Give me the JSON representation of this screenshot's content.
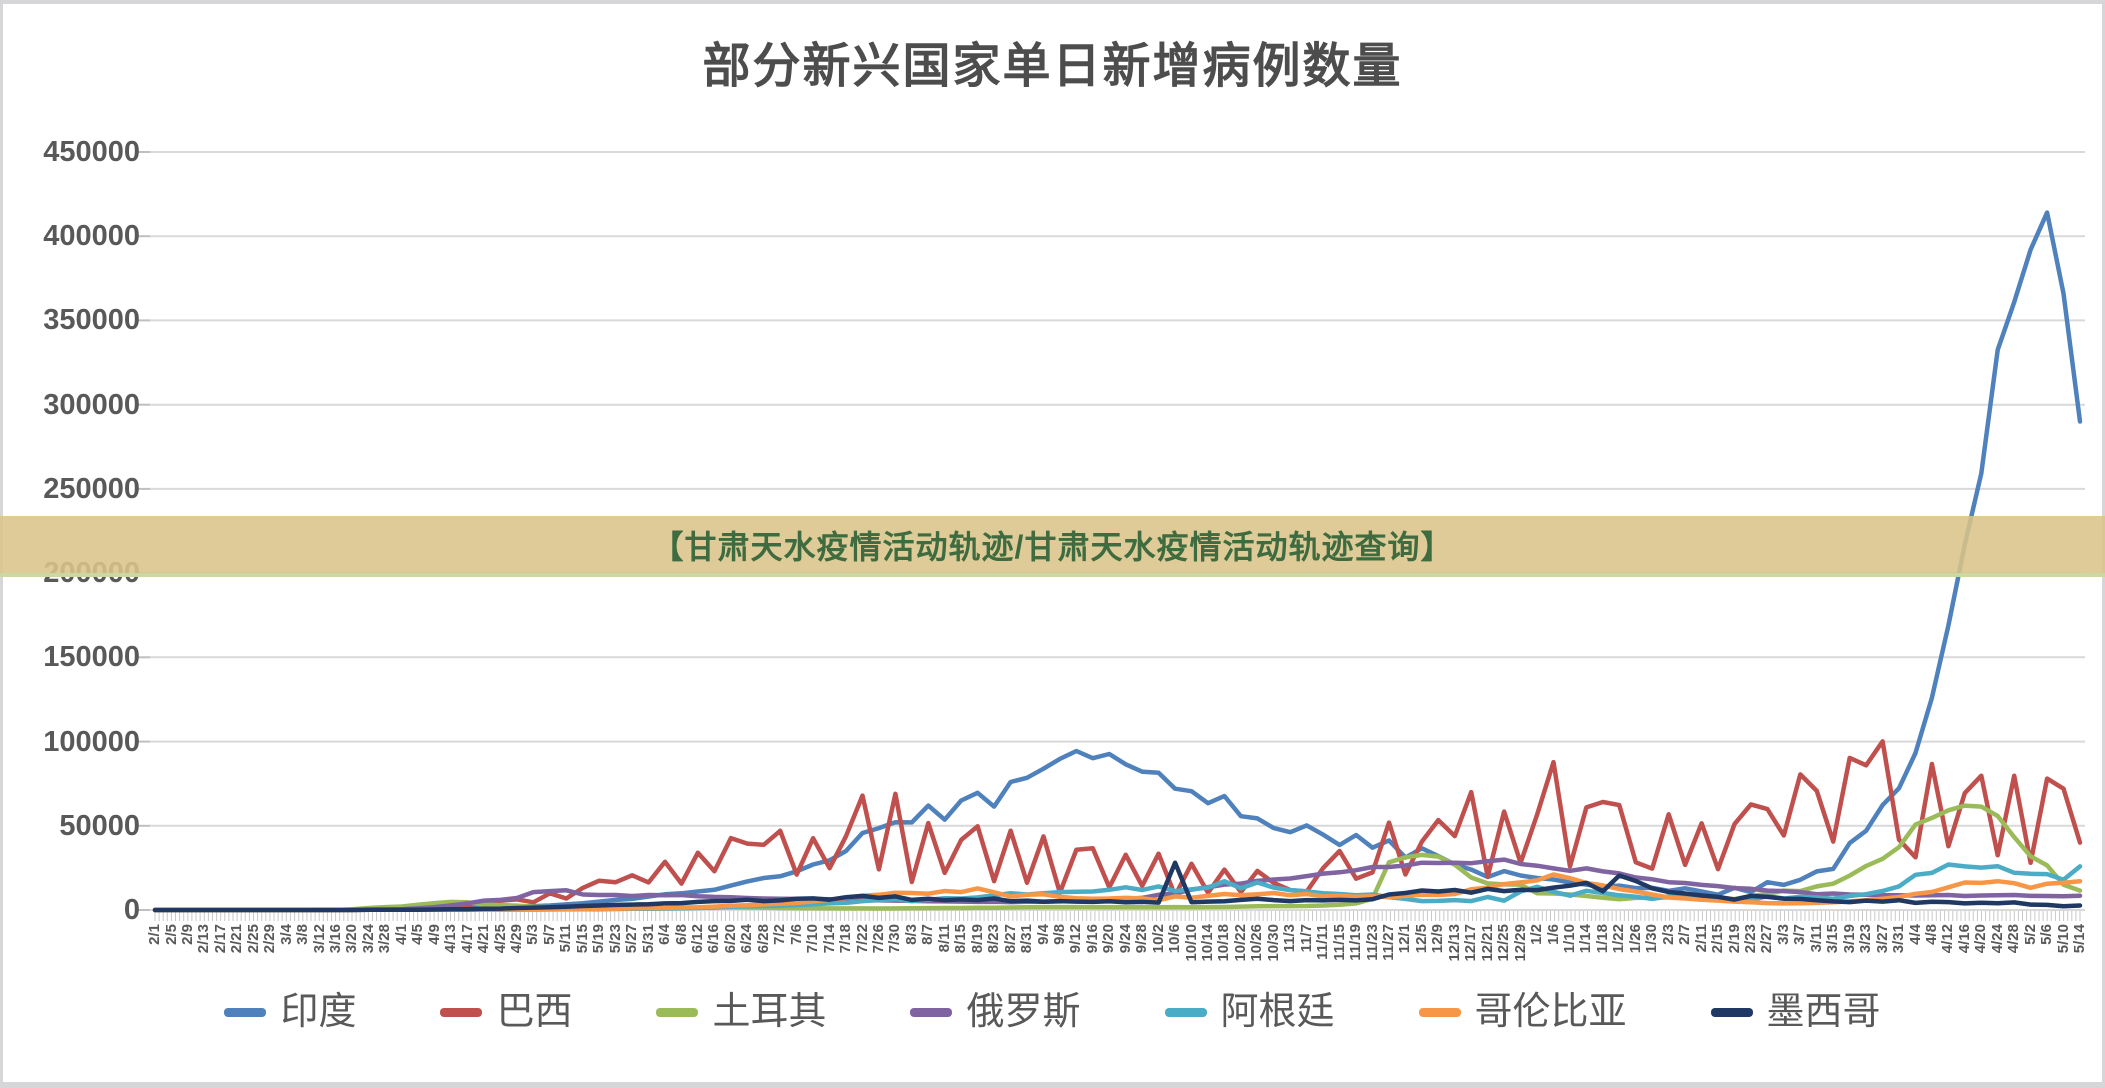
{
  "banner": {
    "text": "【甘肃天水疫情活动轨迹/甘肃天水疫情活动轨迹查询】",
    "bg": "#d9c489",
    "fg": "#3e6b3f"
  },
  "chart_data": {
    "type": "line",
    "title": "部分新兴国家单日新增病例数量",
    "xlabel": "",
    "ylabel": "",
    "ylim": [
      0,
      450000
    ],
    "y_ticks": [
      450000,
      400000,
      350000,
      300000,
      250000,
      200000,
      150000,
      100000,
      50000,
      0
    ],
    "grid": true,
    "legend_position": "bottom",
    "x_note": "daily dates, tick labels every 4 days, 2/1 (2020) through 5/14 (2021)",
    "x_labels": [
      "2/1",
      "2/5",
      "2/9",
      "2/13",
      "2/17",
      "2/21",
      "2/25",
      "2/29",
      "3/4",
      "3/8",
      "3/12",
      "3/16",
      "3/20",
      "3/24",
      "3/28",
      "4/1",
      "4/5",
      "4/9",
      "4/13",
      "4/17",
      "4/21",
      "4/25",
      "4/29",
      "5/3",
      "5/7",
      "5/11",
      "5/15",
      "5/19",
      "5/23",
      "5/27",
      "5/31",
      "6/4",
      "6/8",
      "6/12",
      "6/16",
      "6/20",
      "6/24",
      "6/28",
      "7/2",
      "7/6",
      "7/10",
      "7/14",
      "7/18",
      "7/22",
      "7/26",
      "7/30",
      "8/3",
      "8/7",
      "8/11",
      "8/15",
      "8/19",
      "8/23",
      "8/27",
      "8/31",
      "9/4",
      "9/8",
      "9/12",
      "9/16",
      "9/20",
      "9/24",
      "9/28",
      "10/2",
      "10/6",
      "10/10",
      "10/14",
      "10/18",
      "10/22",
      "10/26",
      "10/30",
      "11/3",
      "11/7",
      "11/11",
      "11/15",
      "11/19",
      "11/23",
      "11/27",
      "12/1",
      "12/5",
      "12/9",
      "12/13",
      "12/17",
      "12/21",
      "12/25",
      "12/29",
      "1/2",
      "1/6",
      "1/10",
      "1/14",
      "1/18",
      "1/22",
      "1/26",
      "1/30",
      "2/3",
      "2/7",
      "2/11",
      "2/15",
      "2/19",
      "2/23",
      "2/27",
      "3/3",
      "3/7",
      "3/11",
      "3/15",
      "3/19",
      "3/23",
      "3/27",
      "3/31",
      "4/4",
      "4/8",
      "4/12",
      "4/16",
      "4/20",
      "4/24",
      "4/28",
      "5/2",
      "5/6",
      "5/10",
      "5/14"
    ],
    "series": [
      {
        "name": "印度",
        "key": "india",
        "color": "#4F81BD",
        "values": [
          0,
          0,
          0,
          0,
          0,
          0,
          0,
          0,
          0,
          0,
          100,
          100,
          200,
          300,
          500,
          600,
          700,
          900,
          1200,
          1400,
          1500,
          1700,
          1900,
          2300,
          2700,
          3300,
          4000,
          5000,
          6000,
          6600,
          8000,
          9300,
          9900,
          11000,
          12000,
          14500,
          17000,
          19000,
          20000,
          23000,
          27000,
          29500,
          35000,
          45700,
          48600,
          52100,
          52000,
          62000,
          53600,
          65000,
          69600,
          61400,
          76000,
          78500,
          83900,
          89700,
          94400,
          90100,
          92600,
          86500,
          82100,
          81500,
          72000,
          70500,
          63400,
          67700,
          55700,
          54400,
          48600,
          46200,
          50200,
          44700,
          38600,
          44500,
          37000,
          41300,
          31100,
          36600,
          32000,
          27100,
          24000,
          19600,
          23100,
          20500,
          19000,
          18100,
          16300,
          15100,
          13800,
          14500,
          13000,
          13100,
          11400,
          12900,
          11000,
          9100,
          13200,
          10600,
          16500,
          14900,
          17900,
          22900,
          24400,
          39700,
          47000,
          62300,
          72300,
          93200,
          126000,
          168900,
          217000,
          259200,
          332500,
          360900,
          392000,
          414000,
          366000,
          290000
        ]
      },
      {
        "name": "巴西",
        "key": "brazil",
        "color": "#C0504D",
        "values": [
          0,
          0,
          0,
          0,
          0,
          0,
          0,
          0,
          0,
          0,
          0,
          100,
          200,
          300,
          500,
          1100,
          1900,
          1800,
          3300,
          2900,
          4600,
          5500,
          6300,
          4600,
          9900,
          6800,
          13100,
          17400,
          16500,
          20600,
          16400,
          28600,
          15700,
          34000,
          23000,
          42700,
          39400,
          38700,
          47000,
          21000,
          42600,
          24800,
          43800,
          67900,
          24100,
          69000,
          16600,
          51600,
          22000,
          41600,
          49700,
          17100,
          47100,
          16200,
          43700,
          10300,
          35800,
          36600,
          13400,
          32800,
          14300,
          33400,
          8500,
          27400,
          10200,
          24000,
          10600,
          23200,
          16000,
          11800,
          10900,
          25000,
          35000,
          18600,
          22300,
          51900,
          21100,
          40600,
          53400,
          43900,
          70000,
          19800,
          58400,
          28000,
          56600,
          87800,
          25800,
          60900,
          64100,
          62300,
          28300,
          24600,
          56800,
          26800,
          51500,
          24300,
          51000,
          62700,
          59900,
          44200,
          80500,
          70700,
          40600,
          90300,
          85900,
          100100,
          41800,
          31300,
          86700,
          37900,
          69400,
          79700,
          32500,
          79700,
          28000,
          78000,
          72000,
          40000
        ]
      },
      {
        "name": "土耳其",
        "key": "turkey",
        "color": "#9BBB59",
        "values": [
          0,
          0,
          0,
          0,
          0,
          0,
          0,
          0,
          0,
          0,
          0,
          0,
          400,
          1200,
          1700,
          2100,
          3100,
          4100,
          4800,
          4600,
          3100,
          2900,
          2600,
          1900,
          1700,
          1500,
          1000,
          1200,
          1100,
          1000,
          800,
          900,
          1000,
          1500,
          1400,
          1600,
          1500,
          1400,
          1200,
          1100,
          1000,
          950,
          930,
          960,
          920,
          970,
          1000,
          1100,
          1200,
          1200,
          1300,
          1300,
          1500,
          1600,
          1700,
          1700,
          1700,
          1700,
          1600,
          1700,
          1600,
          1600,
          1700,
          1600,
          1700,
          1800,
          2000,
          2200,
          2300,
          2300,
          2400,
          2700,
          3100,
          3900,
          6700,
          28300,
          31200,
          32700,
          31700,
          26900,
          19300,
          15800,
          15200,
          15100,
          9900,
          9800,
          9200,
          8300,
          7300,
          6400,
          7200,
          7300,
          7500,
          8000,
          7900,
          7300,
          6500,
          8400,
          9600,
          11500,
          11200,
          14000,
          15600,
          20400,
          26100,
          30400,
          37300,
          50700,
          54700,
          59200,
          62000,
          61400,
          55800,
          43300,
          31900,
          26500,
          15000,
          11500
        ]
      },
      {
        "name": "俄罗斯",
        "key": "russia",
        "color": "#8064A2",
        "values": [
          0,
          0,
          0,
          0,
          0,
          0,
          0,
          0,
          0,
          0,
          0,
          0,
          100,
          200,
          300,
          500,
          1000,
          1700,
          2800,
          4000,
          5600,
          6000,
          7100,
          10600,
          11200,
          11700,
          9200,
          8900,
          8900,
          8300,
          8900,
          8800,
          8900,
          8200,
          7800,
          7600,
          7100,
          6800,
          6700,
          6600,
          6600,
          6400,
          6100,
          5800,
          5700,
          5600,
          5400,
          5200,
          5100,
          5000,
          4800,
          4900,
          4700,
          4900,
          5000,
          5100,
          5400,
          5800,
          6100,
          6600,
          7200,
          9000,
          9800,
          12100,
          13600,
          15100,
          15700,
          17300,
          18100,
          18700,
          20100,
          21600,
          22400,
          23600,
          25500,
          25500,
          26400,
          28100,
          27900,
          28100,
          27800,
          29000,
          29900,
          27300,
          26300,
          24700,
          23300,
          24700,
          22900,
          21700,
          19300,
          18200,
          16500,
          16000,
          14900,
          14200,
          13000,
          12600,
          11500,
          11200,
          10600,
          9400,
          9800,
          9200,
          9100,
          8800,
          8700,
          8600,
          8700,
          8900,
          8300,
          8600,
          8800,
          8900,
          8400,
          8300,
          8200,
          8500
        ]
      },
      {
        "name": "阿根廷",
        "key": "argentina",
        "color": "#4BACC6",
        "values": [
          0,
          0,
          0,
          0,
          0,
          0,
          0,
          0,
          0,
          0,
          0,
          0,
          0,
          100,
          100,
          100,
          100,
          100,
          100,
          100,
          200,
          200,
          250,
          250,
          300,
          350,
          400,
          450,
          600,
          700,
          800,
          900,
          1000,
          1200,
          1500,
          2000,
          2200,
          2300,
          2600,
          2900,
          3300,
          3900,
          4200,
          5300,
          5900,
          6400,
          5300,
          6100,
          7000,
          6800,
          7500,
          8700,
          10000,
          9200,
          9900,
          10600,
          10800,
          11000,
          12000,
          13500,
          11900,
          14000,
          11200,
          12300,
          13300,
          17100,
          12900,
          16300,
          13300,
          11800,
          11100,
          10000,
          9500,
          8800,
          9200,
          7600,
          6600,
          5300,
          5400,
          5900,
          5300,
          7700,
          5500,
          11000,
          13800,
          10800,
          8500,
          11400,
          10100,
          8700,
          7900,
          6600,
          8100,
          7200,
          6100,
          7300,
          6200,
          5900,
          8200,
          6800,
          7800,
          7400,
          6700,
          8300,
          9400,
          11300,
          14000,
          20900,
          22000,
          27000,
          25900,
          25200,
          26000,
          22100,
          21500,
          21300,
          18000,
          25900
        ]
      },
      {
        "name": "哥伦比亚",
        "key": "colombia",
        "color": "#F79646",
        "values": [
          0,
          0,
          0,
          0,
          0,
          0,
          0,
          0,
          0,
          0,
          0,
          0,
          0,
          100,
          100,
          100,
          100,
          100,
          150,
          200,
          250,
          300,
          350,
          400,
          450,
          500,
          600,
          700,
          800,
          1000,
          1100,
          1200,
          1500,
          1600,
          2000,
          2500,
          2800,
          3300,
          3800,
          4200,
          5100,
          6100,
          7200,
          8500,
          9000,
          10300,
          10100,
          9700,
          11300,
          10600,
          12800,
          10500,
          8000,
          9000,
          9300,
          7800,
          7000,
          6700,
          6800,
          7200,
          6900,
          5800,
          8100,
          7300,
          8400,
          9500,
          8700,
          9400,
          10100,
          8700,
          9500,
          8000,
          8500,
          7900,
          8200,
          7600,
          8400,
          9000,
          8900,
          9500,
          12300,
          13300,
          15400,
          16400,
          17600,
          21100,
          18900,
          16000,
          14600,
          12400,
          11000,
          9200,
          7400,
          6800,
          6100,
          5600,
          5000,
          4600,
          4100,
          3900,
          4000,
          4200,
          4600,
          5100,
          5800,
          6700,
          7700,
          9600,
          10700,
          13500,
          16300,
          16100,
          17100,
          15900,
          13200,
          15600,
          16200,
          17100
        ]
      },
      {
        "name": "墨西哥",
        "key": "mexico",
        "color": "#1F3864",
        "values": [
          0,
          0,
          0,
          0,
          0,
          0,
          0,
          0,
          0,
          0,
          0,
          0,
          0,
          100,
          100,
          100,
          200,
          300,
          400,
          500,
          700,
          850,
          1200,
          1400,
          1600,
          1900,
          2400,
          2700,
          3000,
          3200,
          3400,
          3900,
          4100,
          4800,
          5300,
          5400,
          6100,
          5300,
          5700,
          6700,
          6900,
          6100,
          7600,
          8400,
          7200,
          8100,
          6000,
          6700,
          5900,
          6300,
          5900,
          6800,
          5200,
          5600,
          4900,
          5300,
          5000,
          4800,
          5200,
          4600,
          4800,
          4400,
          28100,
          4600,
          5000,
          5200,
          6000,
          6700,
          5900,
          5300,
          5900,
          5700,
          6000,
          5700,
          6400,
          9200,
          10100,
          11600,
          11000,
          11900,
          10300,
          12500,
          11200,
          12000,
          11800,
          13300,
          14400,
          16100,
          11100,
          20500,
          17200,
          12900,
          10700,
          9800,
          8600,
          7800,
          6200,
          8400,
          7800,
          6700,
          6600,
          5800,
          5100,
          4700,
          5600,
          5000,
          5800,
          4200,
          4900,
          4700,
          3900,
          4300,
          4000,
          4500,
          3200,
          3000,
          2200,
          2700
        ]
      }
    ]
  }
}
